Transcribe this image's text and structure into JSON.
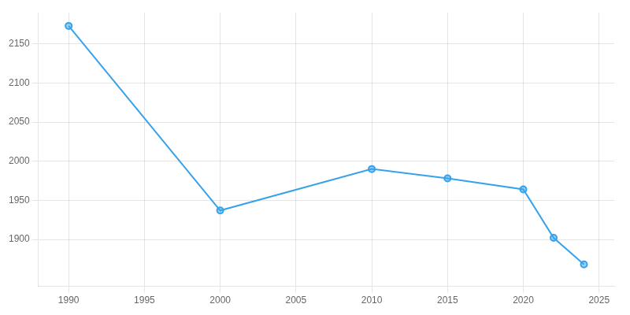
{
  "chart_data": {
    "type": "line",
    "x": [
      1990,
      2000,
      2010,
      2015,
      2020,
      2022,
      2024
    ],
    "values": [
      2173,
      1937,
      1990,
      1978,
      1964,
      1902,
      1868
    ],
    "marker": "circle",
    "xlim": [
      1988,
      2026
    ],
    "xticks": [
      1990,
      1995,
      2000,
      2005,
      2010,
      2015,
      2020,
      2025
    ],
    "ylim": [
      1840,
      2190
    ],
    "yticks": [
      1900,
      1950,
      2000,
      2050,
      2100,
      2150
    ],
    "grid": true
  }
}
